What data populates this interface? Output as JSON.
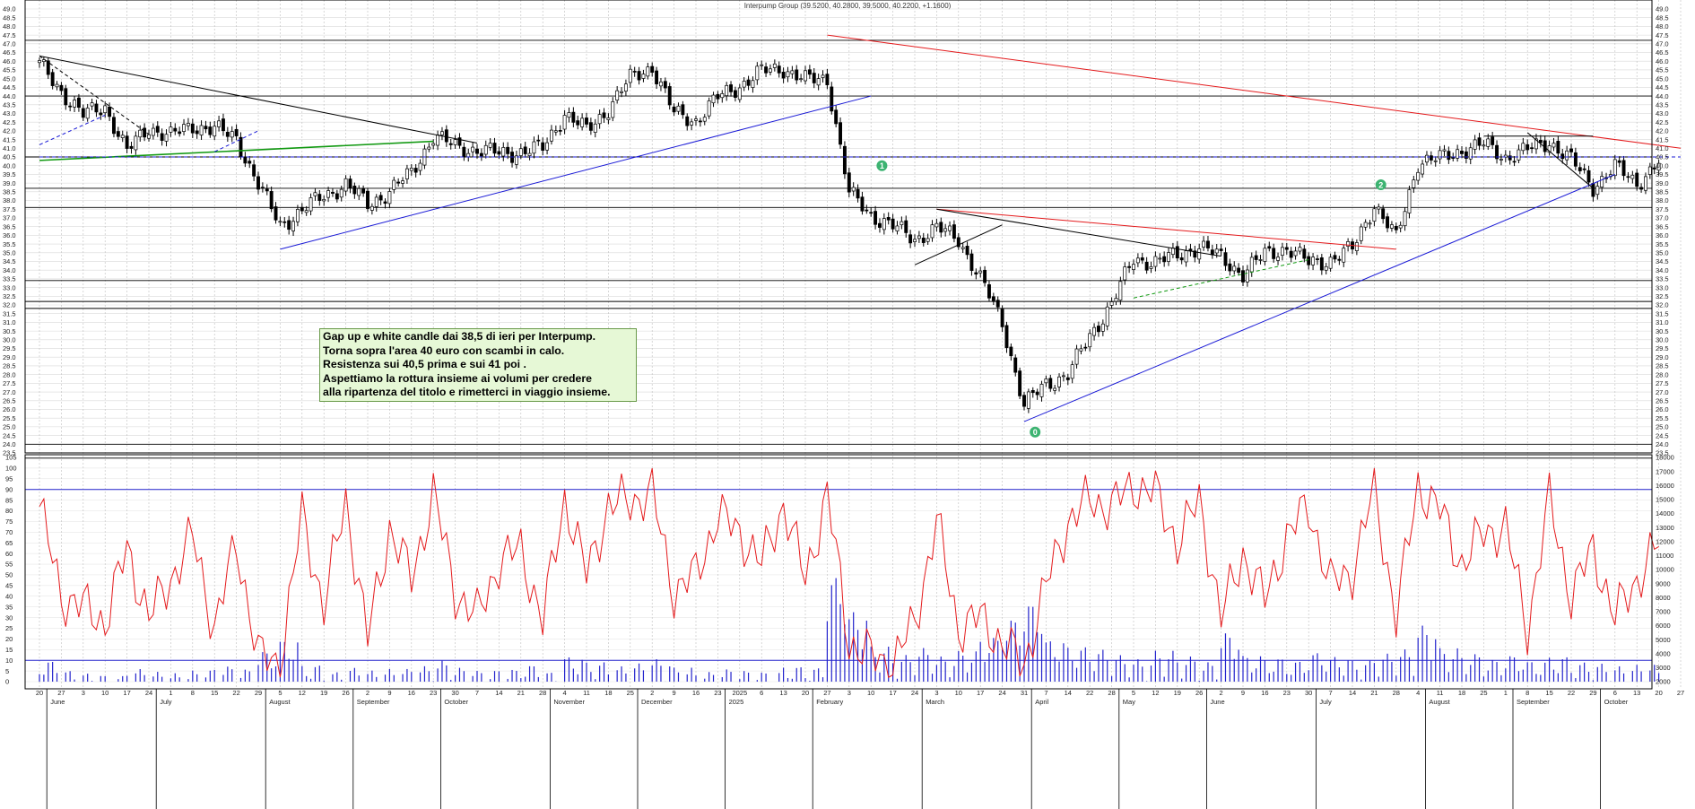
{
  "chart_title": "Interpump Group (39.5200, 40.2800, 39.5000, 40.2200, +1.1600)",
  "note_lines": [
    "Gap up e white candle dai 38,5 di ieri per Interpump.",
    "Torna sopra l'area 40 euro con scambi in calo.",
    "Resistenza sui 40,5 prima e sui 41 poi .",
    "Aspettiamo la rottura insieme ai volumi per credere",
    "alla ripartenza del titolo e rimetterci in viaggio insieme."
  ],
  "colors": {
    "candle": "#000000",
    "resistance_red": "#e41a1c",
    "trend_blue": "#1a1ad6",
    "trend_green": "#119911",
    "oscillator": "#e41a1c",
    "volume": "#2222cc",
    "marker_green": "#3cb371"
  },
  "chart_data": {
    "type": "candlestick",
    "price_axis": {
      "min": 23.5,
      "max": 49.0,
      "step": 0.5
    },
    "oscillator_axis": {
      "min": 0,
      "max": 105,
      "step": 5
    },
    "volume_axis": {
      "min": 2000,
      "max": 18000,
      "step": 1000
    },
    "x_tick_labels": [
      "20",
      "27",
      "3",
      "10",
      "17",
      "24",
      "1",
      "8",
      "15",
      "22",
      "29",
      "5",
      "12",
      "19",
      "26",
      "2",
      "9",
      "16",
      "23",
      "30",
      "7",
      "14",
      "21",
      "28",
      "4",
      "11",
      "18",
      "25",
      "2",
      "9",
      "16",
      "23",
      "2025",
      "6",
      "13",
      "20",
      "27",
      "3",
      "10",
      "17",
      "24",
      "3",
      "10",
      "17",
      "24",
      "31",
      "7",
      "14",
      "22",
      "28",
      "5",
      "12",
      "19",
      "26",
      "2",
      "9",
      "16",
      "23",
      "30",
      "7",
      "14",
      "21",
      "28",
      "4",
      "11",
      "18",
      "25",
      "1",
      "8",
      "15",
      "22",
      "29",
      "6",
      "13",
      "20",
      "27"
    ],
    "month_labels": [
      {
        "label": "June",
        "index": 1
      },
      {
        "label": "July",
        "index": 6
      },
      {
        "label": "August",
        "index": 11
      },
      {
        "label": "September",
        "index": 15
      },
      {
        "label": "October",
        "index": 19
      },
      {
        "label": "November",
        "index": 24
      },
      {
        "label": "December",
        "index": 28
      },
      {
        "label": "2025",
        "index": 32
      },
      {
        "label": "February",
        "index": 36
      },
      {
        "label": "March",
        "index": 41
      },
      {
        "label": "April",
        "index": 46
      },
      {
        "label": "May",
        "index": 50
      },
      {
        "label": "June",
        "index": 54
      },
      {
        "label": "July",
        "index": 59
      },
      {
        "label": "August",
        "index": 64
      },
      {
        "label": "September",
        "index": 68
      },
      {
        "label": "October",
        "index": 72
      }
    ],
    "price_path": [
      [
        0,
        45.8
      ],
      [
        1,
        44.3
      ],
      [
        2,
        42.9
      ],
      [
        3,
        43.4
      ],
      [
        4,
        40.8
      ],
      [
        5,
        42.2
      ],
      [
        6,
        41.7
      ],
      [
        7,
        42.3
      ],
      [
        8,
        42.1
      ],
      [
        9,
        41.6
      ],
      [
        10,
        38.9
      ],
      [
        11,
        36.6
      ],
      [
        12,
        37.4
      ],
      [
        13,
        38.3
      ],
      [
        14,
        38.9
      ],
      [
        15,
        37.8
      ],
      [
        16,
        38.5
      ],
      [
        17,
        39.6
      ],
      [
        18,
        41.7
      ],
      [
        19,
        41.1
      ],
      [
        20,
        40.9
      ],
      [
        21,
        40.7
      ],
      [
        22,
        40.8
      ],
      [
        23,
        41.0
      ],
      [
        24,
        43.0
      ],
      [
        25,
        42.0
      ],
      [
        26,
        43.3
      ],
      [
        27,
        45.0
      ],
      [
        28,
        45.7
      ],
      [
        29,
        43.0
      ],
      [
        30,
        42.6
      ],
      [
        31,
        43.9
      ],
      [
        32,
        44.6
      ],
      [
        33,
        45.4
      ],
      [
        34,
        45.6
      ],
      [
        35,
        44.9
      ],
      [
        36,
        45.0
      ],
      [
        37,
        38.4
      ],
      [
        38,
        37.2
      ],
      [
        39,
        36.5
      ],
      [
        40,
        35.8
      ],
      [
        41,
        36.4
      ],
      [
        42,
        35.8
      ],
      [
        43,
        33.5
      ],
      [
        44,
        31.0
      ],
      [
        45,
        26.2
      ],
      [
        46,
        27.5
      ],
      [
        47,
        28.0
      ],
      [
        48,
        30.2
      ],
      [
        49,
        32.1
      ],
      [
        50,
        34.6
      ],
      [
        51,
        34.5
      ],
      [
        52,
        34.8
      ],
      [
        53,
        35.4
      ],
      [
        54,
        34.7
      ],
      [
        55,
        33.8
      ],
      [
        56,
        34.9
      ],
      [
        57,
        35.3
      ],
      [
        58,
        34.4
      ],
      [
        59,
        34.6
      ],
      [
        60,
        35.2
      ],
      [
        61,
        37.8
      ],
      [
        62,
        35.8
      ],
      [
        63,
        40.2
      ],
      [
        64,
        40.4
      ],
      [
        65,
        40.9
      ],
      [
        66,
        41.2
      ],
      [
        67,
        40.5
      ],
      [
        68,
        40.9
      ],
      [
        69,
        41.4
      ],
      [
        70,
        40.3
      ],
      [
        71,
        38.8
      ],
      [
        72,
        39.9
      ],
      [
        73,
        39.0
      ],
      [
        74,
        40.2
      ]
    ],
    "oscillator_path": [
      [
        0,
        82
      ],
      [
        1,
        40
      ],
      [
        2,
        35
      ],
      [
        3,
        28
      ],
      [
        4,
        62
      ],
      [
        5,
        30
      ],
      [
        6,
        48
      ],
      [
        7,
        68
      ],
      [
        8,
        25
      ],
      [
        9,
        65
      ],
      [
        10,
        12
      ],
      [
        11,
        8
      ],
      [
        12,
        78
      ],
      [
        13,
        35
      ],
      [
        14,
        85
      ],
      [
        15,
        20
      ],
      [
        16,
        72
      ],
      [
        17,
        48
      ],
      [
        18,
        88
      ],
      [
        19,
        42
      ],
      [
        20,
        30
      ],
      [
        21,
        56
      ],
      [
        22,
        62
      ],
      [
        23,
        28
      ],
      [
        24,
        86
      ],
      [
        25,
        50
      ],
      [
        26,
        82
      ],
      [
        27,
        85
      ],
      [
        28,
        88
      ],
      [
        29,
        42
      ],
      [
        30,
        50
      ],
      [
        31,
        78
      ],
      [
        32,
        70
      ],
      [
        33,
        55
      ],
      [
        34,
        83
      ],
      [
        35,
        48
      ],
      [
        36,
        88
      ],
      [
        37,
        18
      ],
      [
        38,
        12
      ],
      [
        39,
        8
      ],
      [
        40,
        28
      ],
      [
        41,
        75
      ],
      [
        42,
        25
      ],
      [
        43,
        30
      ],
      [
        44,
        18
      ],
      [
        45,
        8
      ],
      [
        46,
        45
      ],
      [
        47,
        75
      ],
      [
        48,
        85
      ],
      [
        49,
        82
      ],
      [
        50,
        92
      ],
      [
        51,
        88
      ],
      [
        52,
        65
      ],
      [
        53,
        85
      ],
      [
        54,
        30
      ],
      [
        55,
        60
      ],
      [
        56,
        38
      ],
      [
        57,
        68
      ],
      [
        58,
        82
      ],
      [
        59,
        45
      ],
      [
        60,
        52
      ],
      [
        61,
        90
      ],
      [
        62,
        30
      ],
      [
        63,
        92
      ],
      [
        64,
        80
      ],
      [
        65,
        55
      ],
      [
        66,
        70
      ],
      [
        67,
        72
      ],
      [
        68,
        25
      ],
      [
        69,
        85
      ],
      [
        70,
        40
      ],
      [
        71,
        62
      ],
      [
        72,
        30
      ],
      [
        73,
        48
      ],
      [
        74,
        65
      ]
    ],
    "volume_samples": [
      3500,
      2800,
      2600,
      2400,
      2900,
      2700,
      2600,
      2800,
      3100,
      2900,
      4200,
      5000,
      3200,
      2700,
      3000,
      2800,
      2900,
      3100,
      3500,
      3000,
      2800,
      2900,
      3200,
      2700,
      3800,
      3400,
      3100,
      3300,
      3600,
      3000,
      2700,
      2900,
      2800,
      2700,
      3100,
      3000,
      9500,
      7000,
      4500,
      3900,
      4400,
      3800,
      4200,
      5200,
      6500,
      7600,
      5000,
      4500,
      4300,
      3900,
      3600,
      4200,
      3800,
      3400,
      5500,
      3900,
      3700,
      3500,
      4100,
      3800,
      3500,
      4000,
      4300,
      6000,
      4400,
      4000,
      3600,
      3900,
      3500,
      3800,
      3400,
      3300,
      3100,
      3200,
      3000
    ],
    "horizontal_levels": [
      47.2,
      44.0,
      40.5,
      38.7,
      37.6,
      33.4,
      32.2,
      31.8,
      24.0,
      23.2
    ],
    "trendlines": [
      {
        "color": "resistance_red",
        "from": [
          36,
          47.5
        ],
        "to": [
          75,
          41.0
        ]
      },
      {
        "color": "resistance_red",
        "from": [
          41,
          37.5
        ],
        "to": [
          62,
          35.2
        ]
      },
      {
        "color": "trend_blue",
        "from": [
          11,
          35.2
        ],
        "to": [
          38,
          44.0
        ]
      },
      {
        "color": "trend_blue",
        "from": [
          45,
          25.3
        ],
        "to": [
          72,
          39.5
        ]
      },
      {
        "color": "candle",
        "from": [
          0,
          46.3
        ],
        "to": [
          20,
          41.3
        ]
      },
      {
        "color": "candle",
        "from": [
          41,
          37.5
        ],
        "to": [
          54,
          34.8
        ]
      },
      {
        "color": "candle",
        "from": [
          40,
          34.3
        ],
        "to": [
          44,
          36.6
        ]
      },
      {
        "color": "candle",
        "from": [
          66,
          41.7
        ],
        "to": [
          71,
          41.7
        ]
      },
      {
        "color": "candle",
        "from": [
          68,
          41.9
        ],
        "to": [
          71,
          38.7
        ]
      },
      {
        "color": "trend_green",
        "from": [
          0,
          40.3
        ],
        "to": [
          18,
          41.4
        ]
      }
    ],
    "dashed_lines": [
      {
        "color": "trend_blue",
        "from": [
          0,
          40.5
        ],
        "to": [
          75,
          40.5
        ]
      },
      {
        "color": "trend_green",
        "from": [
          50,
          32.4
        ],
        "to": [
          58,
          34.6
        ]
      },
      {
        "color": "candle",
        "from": [
          0,
          46.3
        ],
        "to": [
          5,
          41.8
        ]
      },
      {
        "color": "trend_blue",
        "from": [
          0,
          41.2
        ],
        "to": [
          3,
          42.9
        ]
      },
      {
        "color": "trend_blue",
        "from": [
          8,
          40.8
        ],
        "to": [
          10,
          42.0
        ]
      }
    ],
    "markers": [
      {
        "label": "0",
        "index": 45.5,
        "price": 24.7
      },
      {
        "label": "1",
        "index": 38.5,
        "price": 40.0
      },
      {
        "label": "2",
        "index": 61.3,
        "price": 38.9
      }
    ],
    "oscillator_levels": [
      90,
      10
    ]
  }
}
